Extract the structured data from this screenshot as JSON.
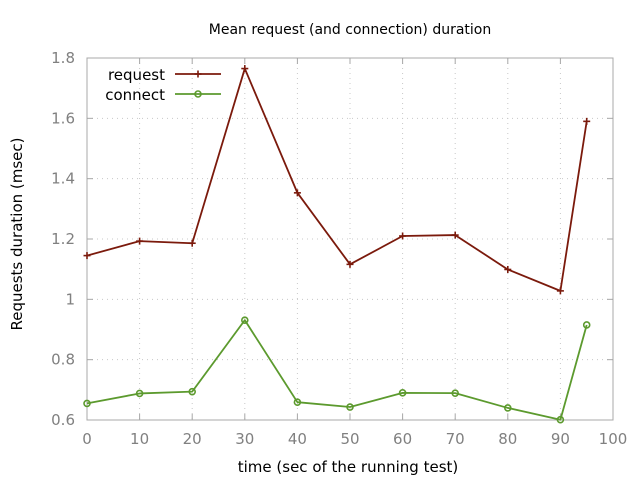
{
  "chart_data": {
    "type": "line",
    "title": "Mean request (and connection) duration",
    "xlabel": "time (sec of the running test)",
    "ylabel": "Requests duration (msec)",
    "xlim": [
      0,
      100
    ],
    "ylim": [
      0.6,
      1.8
    ],
    "xticks": [
      0,
      10,
      20,
      30,
      40,
      50,
      60,
      70,
      80,
      90,
      100
    ],
    "yticks": [
      0.6,
      0.8,
      1.0,
      1.2,
      1.4,
      1.6,
      1.8
    ],
    "xtick_labels": [
      "0",
      "10",
      "20",
      "30",
      "40",
      "50",
      "60",
      "70",
      "80",
      "90",
      "100"
    ],
    "ytick_labels": [
      "0.6",
      "0.8",
      "1",
      "1.2",
      "1.4",
      "1.6",
      "1.8"
    ],
    "grid": true,
    "legend_position": "top-left",
    "x": [
      0,
      10,
      20,
      30,
      40,
      50,
      60,
      70,
      80,
      90,
      95
    ],
    "series": [
      {
        "name": "request",
        "color": "#7b1a0c",
        "marker": "plus",
        "values": [
          1.145,
          1.193,
          1.186,
          1.765,
          1.353,
          1.116,
          1.21,
          1.213,
          1.099,
          1.028,
          1.59
        ]
      },
      {
        "name": "connect",
        "color": "#5c9a2e",
        "marker": "circle",
        "values": [
          0.655,
          0.688,
          0.694,
          0.931,
          0.659,
          0.643,
          0.69,
          0.689,
          0.64,
          0.601,
          0.915
        ]
      }
    ]
  }
}
